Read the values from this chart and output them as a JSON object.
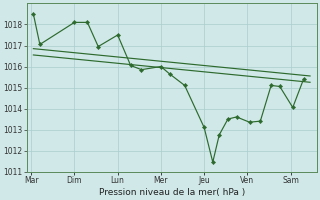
{
  "background_color": "#d0e8e8",
  "grid_color": "#aacece",
  "line_color": "#2d6a2d",
  "marker_color": "#2d6a2d",
  "days": [
    "Mar",
    "Dim",
    "Lun",
    "Mer",
    "Jeu",
    "Ven",
    "Sam"
  ],
  "main_x": [
    0.05,
    0.2,
    1.0,
    1.3,
    1.55,
    2.0,
    2.3,
    2.55,
    3.0,
    3.2,
    3.55,
    4.0,
    4.2,
    4.35,
    4.55,
    4.75,
    5.05,
    5.3,
    5.55,
    5.75,
    6.05,
    6.3
  ],
  "main_y": [
    1018.5,
    1017.05,
    1018.1,
    1018.1,
    1016.95,
    1017.5,
    1016.05,
    1015.85,
    1016.0,
    1015.65,
    1015.1,
    1013.1,
    1011.45,
    1012.75,
    1013.5,
    1013.6,
    1013.35,
    1013.4,
    1015.1,
    1015.05,
    1014.05,
    1015.4
  ],
  "trend_upper_x0": 0.05,
  "trend_upper_y0": 1016.85,
  "trend_upper_x1": 6.45,
  "trend_upper_y1": 1015.55,
  "trend_lower_x0": 0.05,
  "trend_lower_y0": 1016.55,
  "trend_lower_x1": 6.45,
  "trend_lower_y1": 1015.25,
  "xlabel": "Pression niveau de la mer( hPa )",
  "ylim": [
    1011,
    1019
  ],
  "yticks": [
    1011,
    1012,
    1013,
    1014,
    1015,
    1016,
    1017,
    1018
  ],
  "xlim": [
    -0.1,
    6.6
  ]
}
